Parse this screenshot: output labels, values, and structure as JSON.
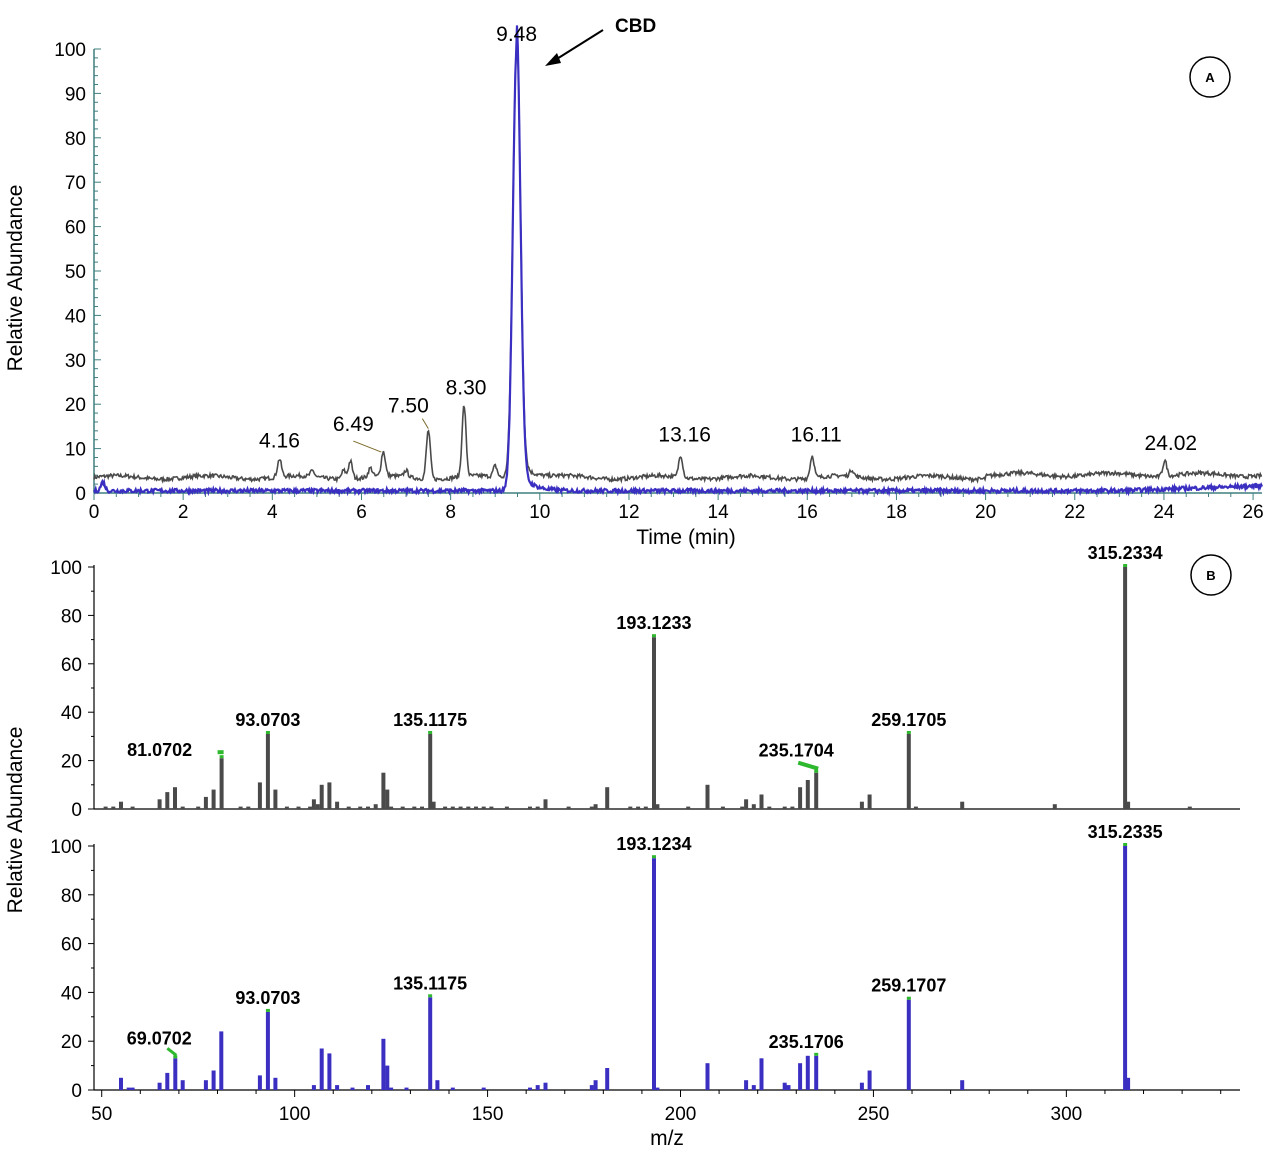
{
  "colors": {
    "gray": "#4a4a4a",
    "blue": "#3a2fc0",
    "green": "#2eb82e",
    "axis": "#3f7f7f"
  },
  "chart_data": [
    {
      "type": "line",
      "panel_label": "A",
      "xlabel": "Time (min)",
      "ylabel": "Relative Abundance",
      "xlim": [
        0,
        26.2
      ],
      "ylim": [
        0,
        100
      ],
      "x_ticks": [
        0,
        2,
        4,
        6,
        8,
        10,
        12,
        14,
        16,
        18,
        20,
        22,
        24,
        26
      ],
      "y_ticks": [
        0,
        10,
        20,
        30,
        40,
        50,
        60,
        70,
        80,
        90,
        100
      ],
      "annotation": {
        "text": "CBD",
        "x": 9.48,
        "y": 100
      },
      "series": [
        {
          "color": "#4a4a4a",
          "baseline": 3.5,
          "peaks": [
            {
              "x": 4.16,
              "y": 7.5,
              "label": "4.16"
            },
            {
              "x": 4.9,
              "y": 4.8
            },
            {
              "x": 5.6,
              "y": 5.5
            },
            {
              "x": 5.75,
              "y": 7.5
            },
            {
              "x": 6.2,
              "y": 5.5
            },
            {
              "x": 6.49,
              "y": 9.0,
              "label": "6.49"
            },
            {
              "x": 7.0,
              "y": 5.0
            },
            {
              "x": 7.5,
              "y": 14.5,
              "label": "7.50"
            },
            {
              "x": 8.3,
              "y": 19.5,
              "label": "8.30"
            },
            {
              "x": 9.0,
              "y": 6.0
            },
            {
              "x": 9.48,
              "y": 100,
              "label": "9.48"
            },
            {
              "x": 13.16,
              "y": 8.5,
              "label": "13.16"
            },
            {
              "x": 16.11,
              "y": 8.5,
              "label": "16.11"
            },
            {
              "x": 17.0,
              "y": 5.0
            },
            {
              "x": 24.02,
              "y": 7.0,
              "label": "24.02"
            }
          ]
        },
        {
          "color": "#3a2fc0",
          "baseline": 0.5,
          "peaks": [
            {
              "x": 0.2,
              "y": 2.5
            },
            {
              "x": 9.48,
              "y": 100
            }
          ]
        }
      ],
      "peak_labels": [
        "4.16",
        "6.49",
        "7.50",
        "8.30",
        "9.48",
        "13.16",
        "16.11",
        "24.02"
      ]
    },
    {
      "type": "bar",
      "panel_label": "B",
      "xlabel": "m/z",
      "ylabel": "Relative Abundance",
      "xlim": [
        48,
        345
      ],
      "ylim": [
        0,
        100
      ],
      "x_ticks": [
        50,
        100,
        150,
        200,
        250,
        300
      ],
      "y_ticks": [
        0,
        20,
        40,
        60,
        80,
        100
      ],
      "series": [
        {
          "color": "#4a4a4a",
          "bars": [
            [
              51,
              1
            ],
            [
              53,
              1
            ],
            [
              55,
              3
            ],
            [
              58,
              1
            ],
            [
              65,
              4
            ],
            [
              67,
              7
            ],
            [
              69,
              9
            ],
            [
              71,
              1
            ],
            [
              75,
              1
            ],
            [
              77,
              5
            ],
            [
              79,
              8
            ],
            [
              81.0702,
              21
            ],
            [
              86,
              1
            ],
            [
              88,
              1
            ],
            [
              91,
              11
            ],
            [
              93.0703,
              31
            ],
            [
              95,
              8
            ],
            [
              98,
              1
            ],
            [
              101,
              1
            ],
            [
              104,
              1
            ],
            [
              105,
              4
            ],
            [
              106,
              2
            ],
            [
              107,
              10
            ],
            [
              109,
              11
            ],
            [
              111,
              3
            ],
            [
              114,
              1
            ],
            [
              117,
              1
            ],
            [
              119,
              1
            ],
            [
              121,
              2
            ],
            [
              123,
              15
            ],
            [
              124,
              8
            ],
            [
              125,
              1
            ],
            [
              128,
              1
            ],
            [
              131,
              1
            ],
            [
              133,
              1
            ],
            [
              135.1175,
              31
            ],
            [
              136,
              3
            ],
            [
              139,
              1
            ],
            [
              141,
              1
            ],
            [
              143,
              1
            ],
            [
              145,
              1
            ],
            [
              147,
              1
            ],
            [
              149,
              1
            ],
            [
              151,
              1
            ],
            [
              155,
              1
            ],
            [
              161,
              1
            ],
            [
              163,
              1
            ],
            [
              165,
              4
            ],
            [
              171,
              1
            ],
            [
              177,
              1
            ],
            [
              178,
              2
            ],
            [
              181,
              9
            ],
            [
              187,
              1
            ],
            [
              189,
              1
            ],
            [
              191,
              1
            ],
            [
              193.1233,
              71
            ],
            [
              194,
              2
            ],
            [
              202,
              1
            ],
            [
              207,
              10
            ],
            [
              211,
              1
            ],
            [
              216,
              1
            ],
            [
              217,
              4
            ],
            [
              219,
              2
            ],
            [
              221,
              6
            ],
            [
              223,
              1
            ],
            [
              227,
              1
            ],
            [
              229,
              1
            ],
            [
              231,
              9
            ],
            [
              233,
              12
            ],
            [
              235.1704,
              15
            ],
            [
              247,
              3
            ],
            [
              249,
              6
            ],
            [
              259.1705,
              31
            ],
            [
              261,
              1
            ],
            [
              273,
              3
            ],
            [
              297,
              2
            ],
            [
              315.2334,
              100
            ],
            [
              316,
              3
            ],
            [
              332,
              1
            ]
          ],
          "labels": [
            {
              "x": 81.0702,
              "y": 21,
              "text": "81.0702"
            },
            {
              "x": 93.0703,
              "y": 31,
              "text": "93.0703"
            },
            {
              "x": 135.1175,
              "y": 31,
              "text": "135.1175"
            },
            {
              "x": 193.1233,
              "y": 71,
              "text": "193.1233"
            },
            {
              "x": 235.1704,
              "y": 15,
              "text": "235.1704"
            },
            {
              "x": 259.1705,
              "y": 31,
              "text": "259.1705"
            },
            {
              "x": 315.2334,
              "y": 100,
              "text": "315.2334"
            }
          ]
        },
        {
          "color": "#3a2fc0",
          "bars": [
            [
              55,
              5
            ],
            [
              57,
              1
            ],
            [
              58,
              1
            ],
            [
              65,
              3
            ],
            [
              67,
              7
            ],
            [
              69.0702,
              13
            ],
            [
              71,
              4
            ],
            [
              77,
              4
            ],
            [
              79,
              8
            ],
            [
              81,
              24
            ],
            [
              91,
              6
            ],
            [
              93.0703,
              32
            ],
            [
              95,
              5
            ],
            [
              105,
              2
            ],
            [
              107,
              17
            ],
            [
              109,
              15
            ],
            [
              111,
              2
            ],
            [
              115,
              1
            ],
            [
              119,
              2
            ],
            [
              123,
              21
            ],
            [
              124,
              10
            ],
            [
              125,
              1
            ],
            [
              129,
              1
            ],
            [
              135.1175,
              38
            ],
            [
              137,
              4
            ],
            [
              141,
              1
            ],
            [
              149,
              1
            ],
            [
              161,
              1
            ],
            [
              163,
              2
            ],
            [
              165,
              3
            ],
            [
              177,
              2
            ],
            [
              178,
              4
            ],
            [
              181,
              9
            ],
            [
              193.1234,
              95
            ],
            [
              194,
              1
            ],
            [
              207,
              11
            ],
            [
              217,
              4
            ],
            [
              219,
              2
            ],
            [
              221,
              13
            ],
            [
              227,
              3
            ],
            [
              228,
              2
            ],
            [
              231,
              11
            ],
            [
              233,
              14
            ],
            [
              235.1706,
              14
            ],
            [
              247,
              3
            ],
            [
              249,
              8
            ],
            [
              259.1707,
              37
            ],
            [
              273,
              4
            ],
            [
              315.2335,
              100
            ],
            [
              316,
              5
            ]
          ],
          "labels": [
            {
              "x": 69.0702,
              "y": 13,
              "text": "69.0702"
            },
            {
              "x": 93.0703,
              "y": 32,
              "text": "93.0703"
            },
            {
              "x": 135.1175,
              "y": 38,
              "text": "135.1175"
            },
            {
              "x": 193.1234,
              "y": 95,
              "text": "193.1234"
            },
            {
              "x": 235.1706,
              "y": 14,
              "text": "235.1706"
            },
            {
              "x": 259.1707,
              "y": 37,
              "text": "259.1707"
            },
            {
              "x": 315.2335,
              "y": 100,
              "text": "315.2335"
            }
          ]
        }
      ]
    }
  ]
}
